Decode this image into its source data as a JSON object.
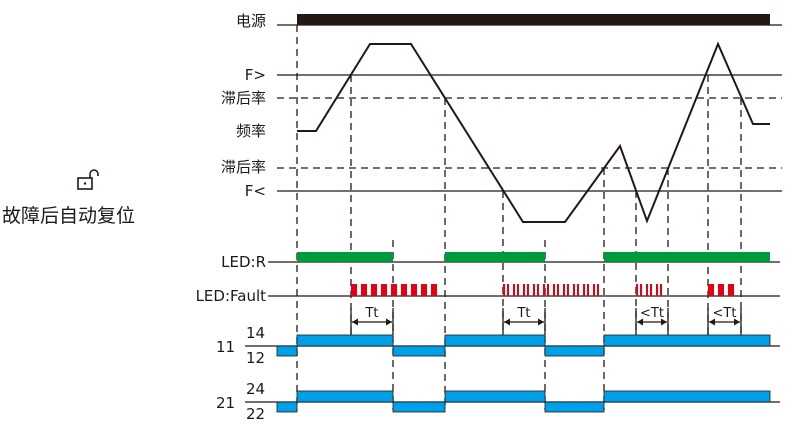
{
  "labels": {
    "power": "电源",
    "f_high": "F>",
    "hyst_high": "滞后率",
    "frequency": "频率",
    "hyst_low": "滞后率",
    "f_low": "F<",
    "led_r": "LED:R",
    "led_fault": "LED:Fault",
    "relay1_common": "11",
    "relay1_no": "14",
    "relay1_nc": "12",
    "relay2_common": "21",
    "relay2_no": "24",
    "relay2_nc": "22"
  },
  "mode": {
    "icon": "unlock-icon",
    "text": "故障后自动复位"
  },
  "delays": [
    "Tt",
    "Tt",
    "<Tt",
    "<Tt"
  ],
  "colors": {
    "power": "#231815",
    "led_r": "#009a3e",
    "led_fault": "#e60012",
    "relay": "#00a0e9"
  }
}
